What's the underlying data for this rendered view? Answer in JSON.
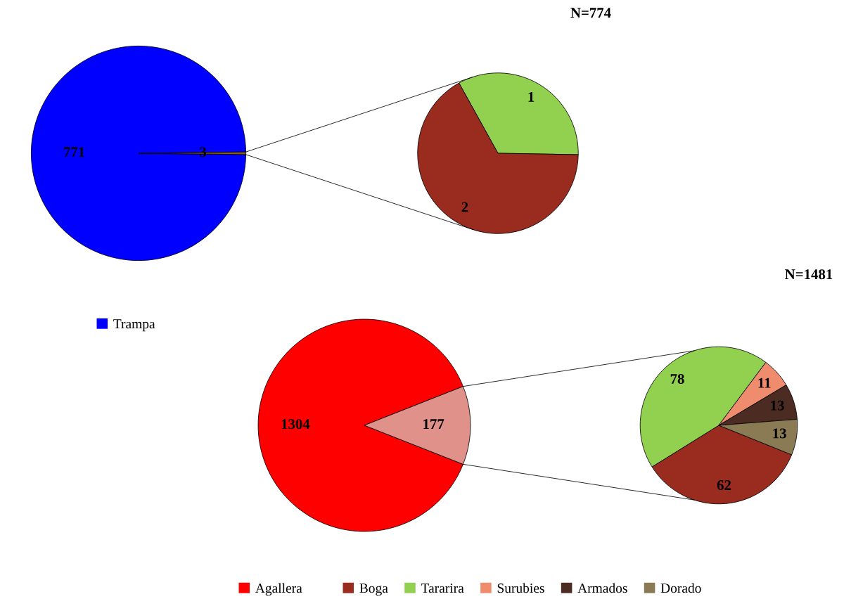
{
  "chart_data": [
    {
      "type": "pie",
      "categories": [
        "Trampa",
        null
      ],
      "values": [
        771,
        3
      ],
      "colors": [
        "#0000ff",
        "#8b5a2b"
      ],
      "data_labels": true,
      "legend": "bottom"
    },
    {
      "type": "pie",
      "title": "N=774",
      "categories": [
        null,
        null
      ],
      "values": [
        1,
        2
      ],
      "colors": [
        "#92d050",
        "#992b1f"
      ],
      "data_labels": true
    },
    {
      "type": "pie",
      "categories": [
        "Agallera",
        null
      ],
      "values": [
        1304,
        177
      ],
      "colors": [
        "#ff0000",
        "#e0928a"
      ],
      "data_labels": true,
      "legend": "bottom"
    },
    {
      "type": "pie",
      "title": "N=1481",
      "categories": [
        "Boga",
        "Tararira",
        "Surubies",
        "Armados",
        "Dorado"
      ],
      "values": [
        62,
        78,
        11,
        13,
        13
      ],
      "colors": [
        "#992b1f",
        "#92d050",
        "#f08c6e",
        "#4b2b22",
        "#8b7b55"
      ],
      "data_labels": true,
      "legend": "bottom"
    }
  ]
}
